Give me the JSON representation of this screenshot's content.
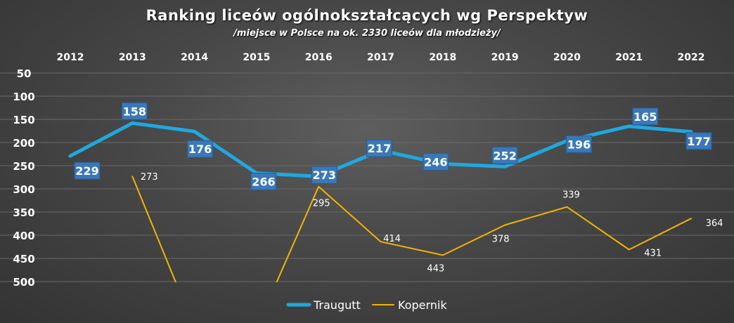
{
  "chart_data": {
    "type": "line",
    "title": "Ranking liceów ogólnokształcących  wg Perspektyw",
    "subtitle": "/miejsce  w Polsce na ok. 2330 liceów dla młodzieży/",
    "categories": [
      "2012",
      "2013",
      "2014",
      "2015",
      "2016",
      "2017",
      "2018",
      "2019",
      "2020",
      "2021",
      "2022"
    ],
    "x_axis_position": "top",
    "y_axis": {
      "reversed": true,
      "ylim": [
        50,
        500
      ],
      "ticks": [
        "50",
        "100",
        "150",
        "200",
        "250",
        "300",
        "350",
        "400",
        "450",
        "500"
      ]
    },
    "grid": true,
    "legend_position": "bottom",
    "series": [
      {
        "name": "Traugutt",
        "color": "#1fa8e0",
        "values": [
          229,
          158,
          176,
          266,
          273,
          217,
          246,
          252,
          196,
          165,
          177
        ],
        "labels": [
          "229",
          "158",
          "176",
          "266",
          "273",
          "217",
          "246",
          "252",
          "196",
          "165",
          "177"
        ],
        "label_style": "box",
        "label_box_color": "#3a78b8"
      },
      {
        "name": "Kopernik",
        "color": "#f0b400",
        "values": [
          null,
          273,
          600,
          600,
          295,
          414,
          443,
          378,
          339,
          431,
          364
        ],
        "labels": [
          "",
          "273",
          "",
          "",
          "295",
          "414",
          "443",
          "378",
          "339",
          "431",
          "364"
        ],
        "label_style": "plain"
      }
    ]
  }
}
